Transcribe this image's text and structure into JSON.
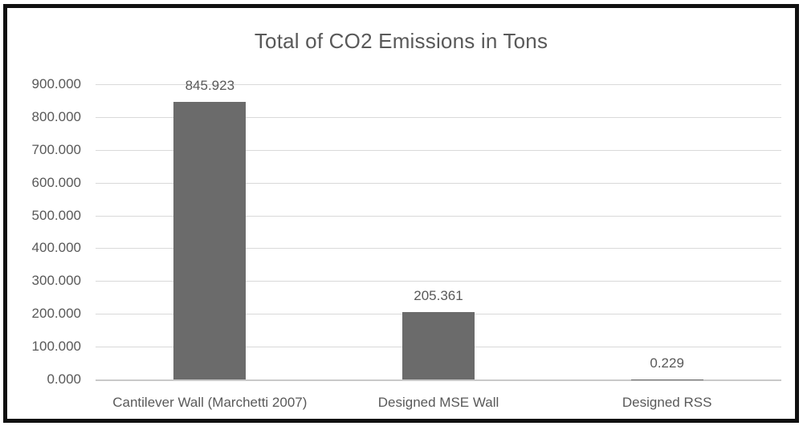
{
  "chart_data": {
    "type": "bar",
    "title": "Total of CO2 Emissions in Tons",
    "categories": [
      "Cantilever Wall (Marchetti 2007)",
      "Designed MSE Wall",
      "Designed RSS"
    ],
    "values": [
      845.923,
      205.361,
      0.229
    ],
    "value_labels": [
      "845.923",
      "205.361",
      "0.229"
    ],
    "xlabel": "",
    "ylabel": "",
    "ylim": [
      0,
      900
    ],
    "ytick_values": [
      0,
      100,
      200,
      300,
      400,
      500,
      600,
      700,
      800,
      900
    ],
    "ytick_labels": [
      "0.000",
      "100.000",
      "200.000",
      "300.000",
      "400.000",
      "500.000",
      "600.000",
      "700.000",
      "800.000",
      "900.000"
    ],
    "grid": true,
    "legend": false,
    "colors": {
      "bar": "#6b6b6b",
      "text": "#595959",
      "gridline": "#d9d9d9",
      "baseline": "#c9c9c9",
      "frame_border": "#101010",
      "background": "#ffffff"
    }
  }
}
